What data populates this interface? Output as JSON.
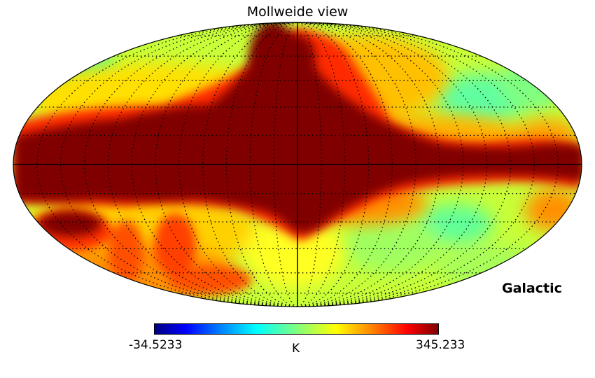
{
  "title": "Mollweide view",
  "coordinate_system": "Galactic",
  "colorbar": {
    "min_label": "-34.5233",
    "max_label": "345.233",
    "unit": "K",
    "colormap": "jet",
    "stops": [
      "#00007f",
      "#0000ff",
      "#007fff",
      "#00ffff",
      "#7fff7f",
      "#ffff00",
      "#ff7f00",
      "#ff0000",
      "#7f0000"
    ]
  },
  "graticule": {
    "style": "dotted",
    "color": "#000000"
  },
  "colors": {
    "galactic_plane": "#800000",
    "high_emission": "#ff2000",
    "warm": "#ffa000",
    "mid": "#ffff00",
    "cool": "#b8ff40",
    "coolest": "#60ff90"
  }
}
